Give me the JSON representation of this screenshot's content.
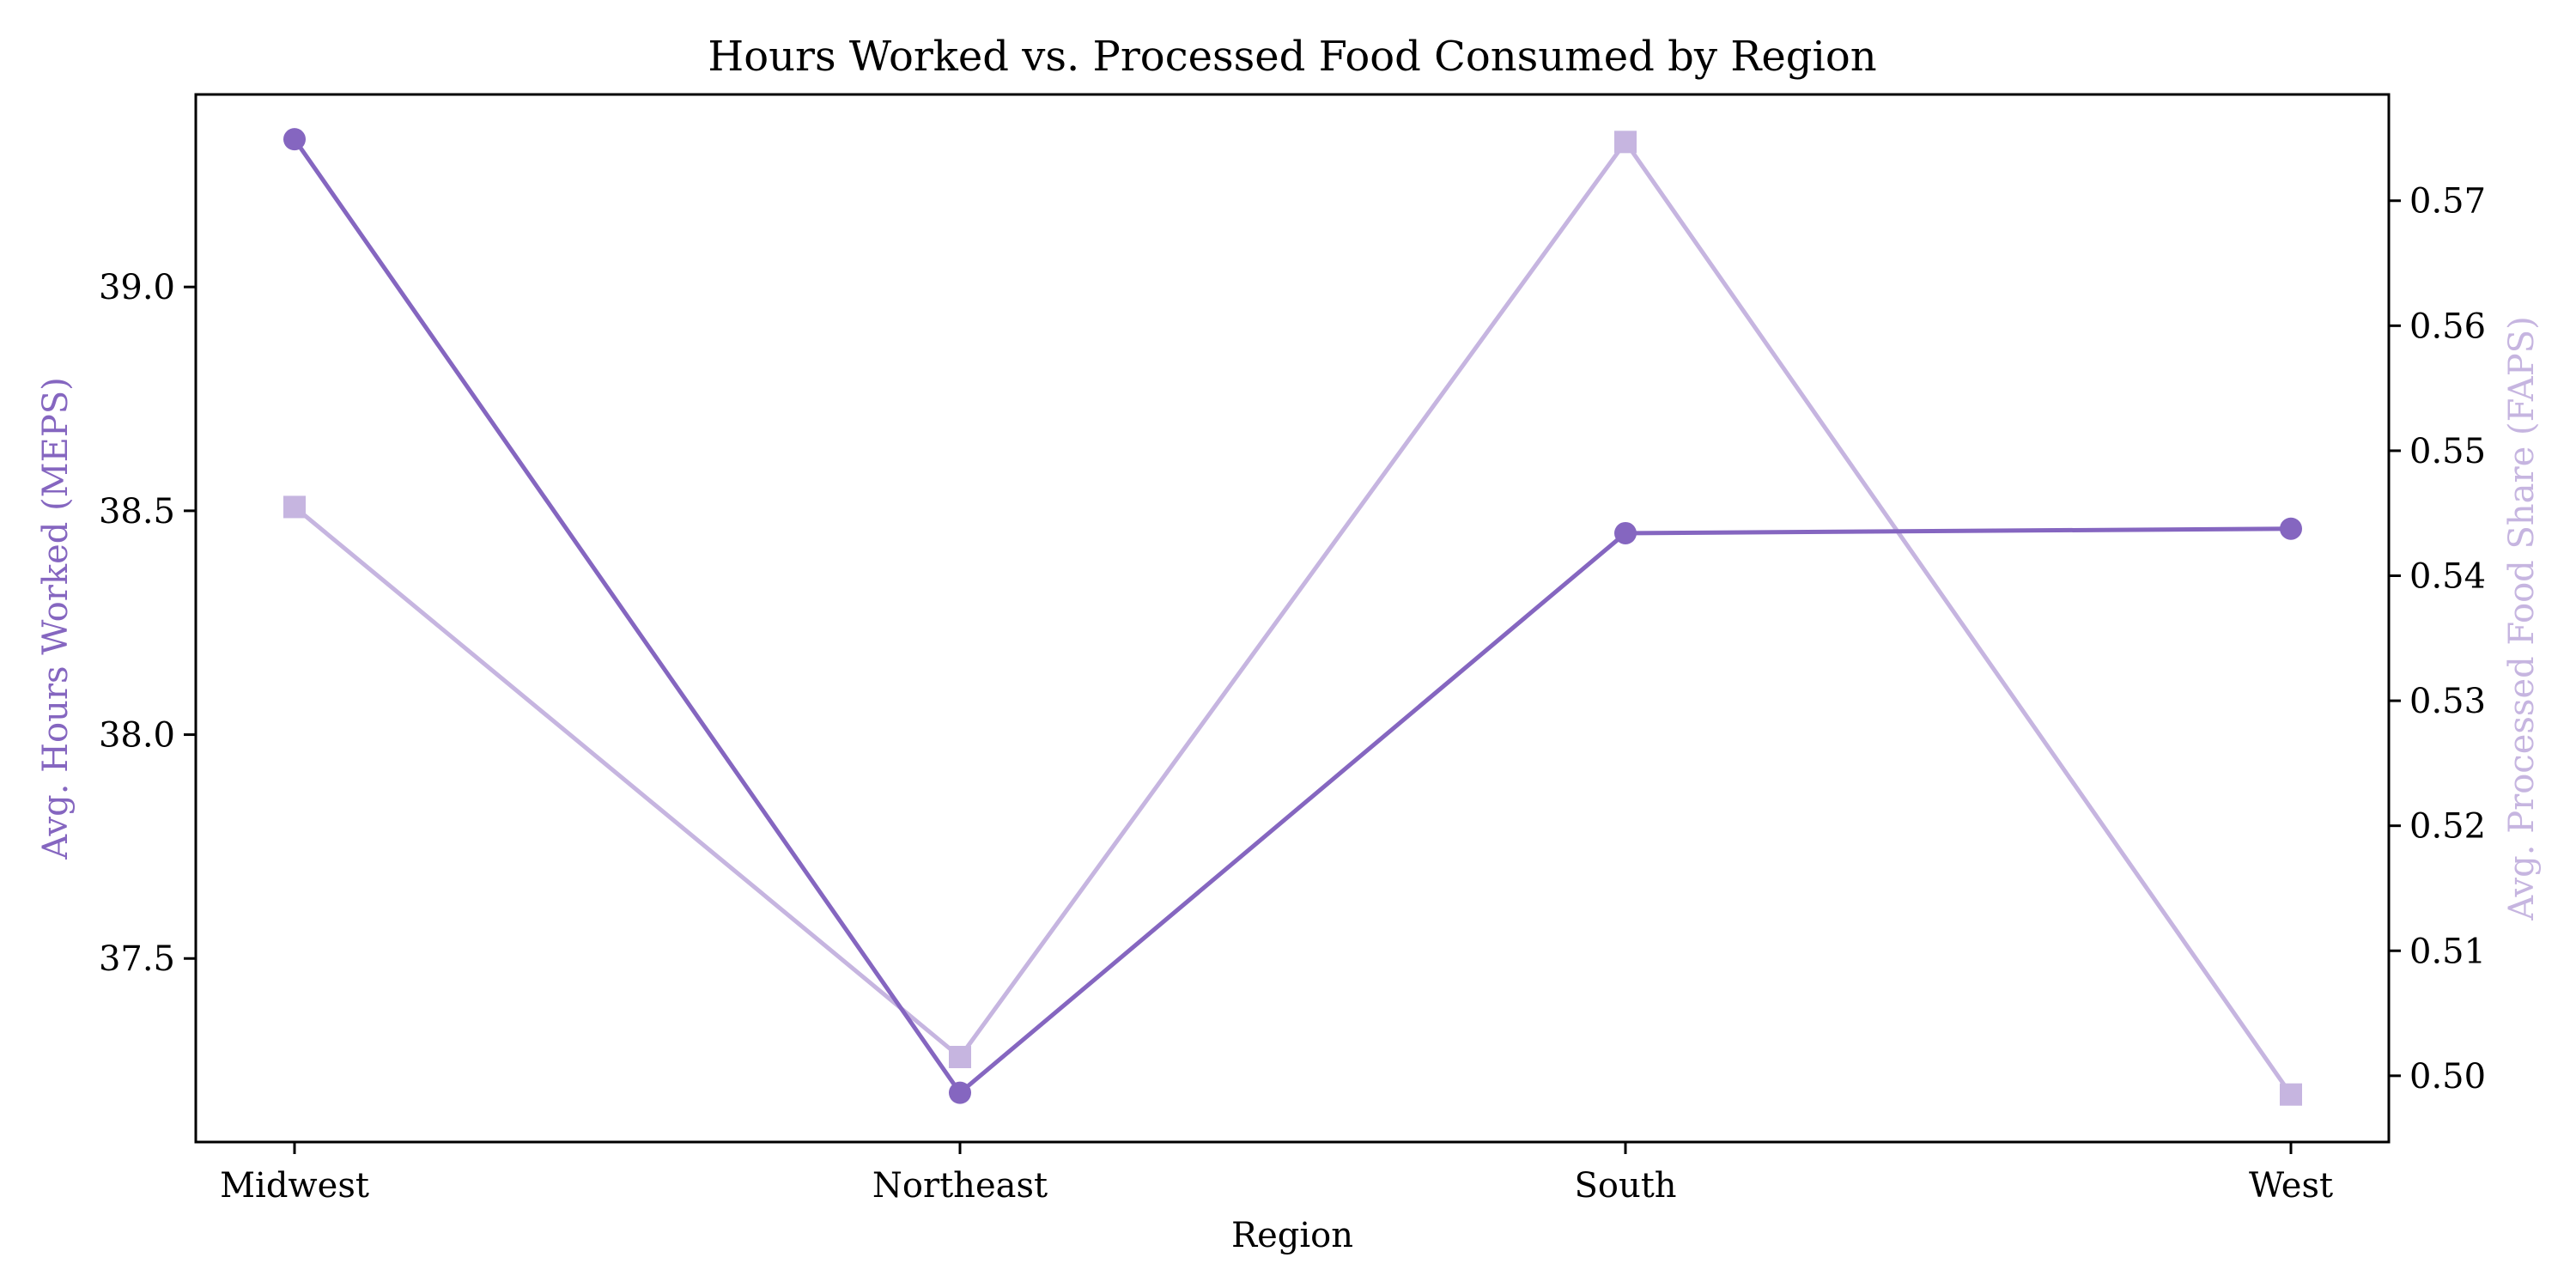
{
  "chart_data": {
    "type": "line",
    "title": "Hours Worked vs. Processed Food Consumed by Region",
    "xlabel": "Region",
    "categories": [
      "Midwest",
      "Northeast",
      "South",
      "West"
    ],
    "y_left": {
      "label": "Avg. Hours Worked (MEPS)",
      "range": [
        37.09,
        39.43
      ],
      "ticks": [
        37.5,
        38.0,
        38.5,
        39.0
      ],
      "tick_labels": [
        "37.5",
        "38.0",
        "38.5",
        "39.0"
      ]
    },
    "y_right": {
      "label": "Avg. Processed Food Share (FAPS)",
      "range": [
        0.4947,
        0.5785
      ],
      "ticks": [
        0.5,
        0.51,
        0.52,
        0.53,
        0.54,
        0.55,
        0.56,
        0.57
      ],
      "tick_labels": [
        "0.50",
        "0.51",
        "0.52",
        "0.53",
        "0.54",
        "0.55",
        "0.56",
        "0.57"
      ]
    },
    "series": [
      {
        "axis": "left",
        "marker": "circle",
        "color": "#8566c0",
        "values": [
          39.33,
          37.2,
          38.45,
          38.46
        ]
      },
      {
        "axis": "right",
        "marker": "square",
        "color": "#c6b5e0",
        "values": [
          0.5455,
          0.5015,
          0.5747,
          0.4985
        ]
      }
    ],
    "grid": false,
    "legend": "none"
  }
}
